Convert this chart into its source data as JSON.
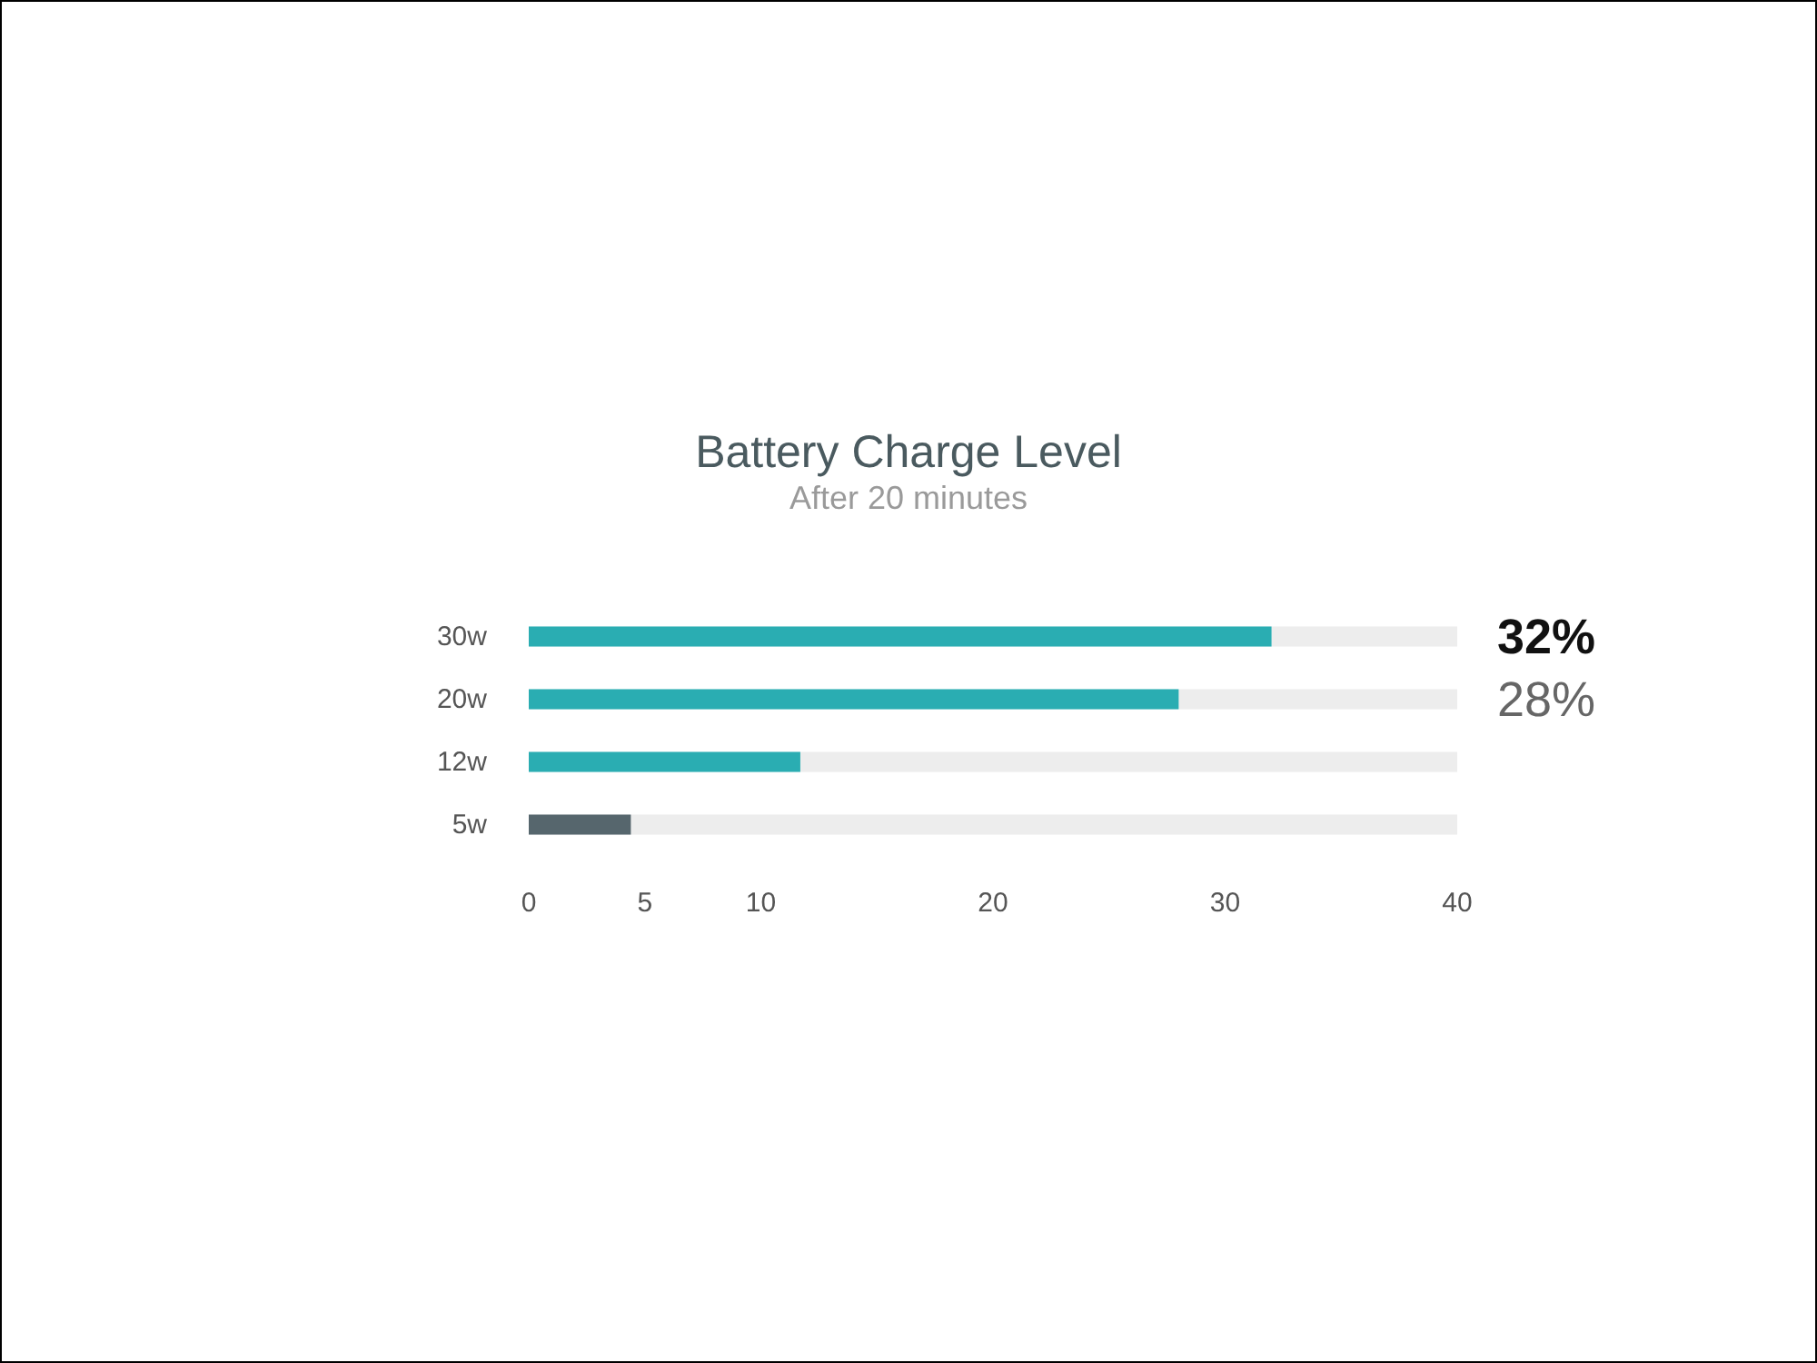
{
  "chart_data": {
    "type": "bar",
    "title": "Battery Charge Level",
    "subtitle": "After 20 minutes",
    "orientation": "horizontal",
    "stacked": true,
    "categories": [
      "30w",
      "20w",
      "12w",
      "5w"
    ],
    "series": [
      {
        "colors": [
          "#2aadb2",
          "#2aadb2",
          "#2aadb2",
          "#56666d"
        ],
        "values": [
          32,
          28,
          11.7,
          4.4
        ],
        "value_labels": [
          "32%",
          "28%",
          null,
          null
        ]
      },
      {
        "color": "#ededed",
        "values": [
          8,
          12,
          28.3,
          35.6
        ]
      }
    ],
    "xlim": [
      0,
      40
    ],
    "xticks": [
      0,
      5,
      10,
      20,
      30,
      40
    ]
  }
}
